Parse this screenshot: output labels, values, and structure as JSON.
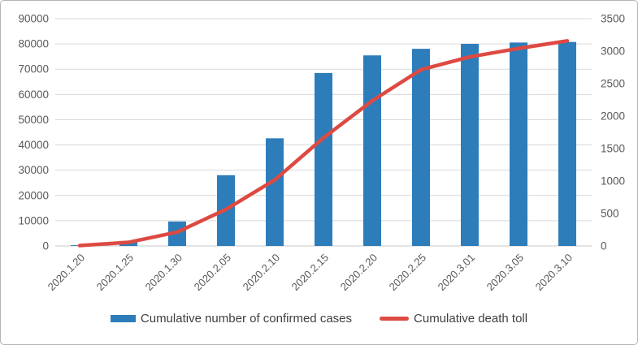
{
  "chart_data": {
    "type": "combo-bar-line",
    "title": "",
    "categories": [
      "2020.1.20",
      "2020.1.25",
      "2020.1.30",
      "2020.2.05",
      "2020.2.10",
      "2020.2.15",
      "2020.2.20",
      "2020.2.25",
      "2020.3.01",
      "2020.3.05",
      "2020.3.10"
    ],
    "series": [
      {
        "name": "Cumulative number of confirmed cases",
        "kind": "bar",
        "axis": "left",
        "color": "#2d7dbb",
        "values": [
          291,
          1975,
          9692,
          28018,
          42638,
          68500,
          75465,
          78064,
          80026,
          80552,
          80778
        ]
      },
      {
        "name": "Cumulative death toll",
        "kind": "line",
        "axis": "right",
        "color": "#dd4a42",
        "values": [
          6,
          56,
          213,
          563,
          1016,
          1665,
          2236,
          2715,
          2912,
          3042,
          3158
        ]
      }
    ],
    "left_axis": {
      "min": 0,
      "max": 90000,
      "step": 10000,
      "tick_labels": [
        "0",
        "10000",
        "20000",
        "30000",
        "40000",
        "50000",
        "60000",
        "70000",
        "80000",
        "90000"
      ]
    },
    "right_axis": {
      "min": 0,
      "max": 3500,
      "step": 500,
      "tick_labels": [
        "0",
        "500",
        "1000",
        "1500",
        "2000",
        "2500",
        "3000",
        "3500"
      ]
    },
    "grid": true,
    "legend_position": "bottom"
  },
  "style": {
    "axis_label_color": "#595959",
    "gridline_color": "#d9d9d9",
    "baseline_color": "#c9c9c9",
    "background": "#ffffff"
  }
}
